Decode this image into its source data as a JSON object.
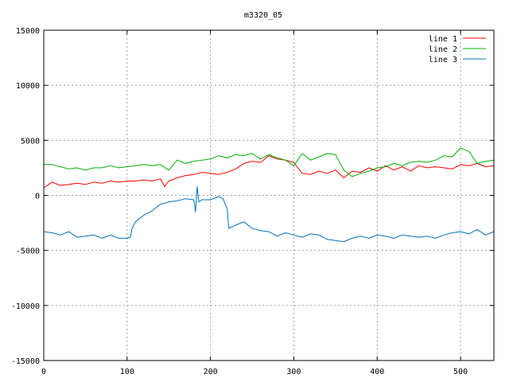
{
  "chart_data": {
    "type": "line",
    "title": "m3320_05",
    "xlabel": "",
    "ylabel": "",
    "xlim": [
      0,
      540
    ],
    "ylim": [
      -15000,
      15000
    ],
    "xticks": [
      0,
      100,
      200,
      300,
      400,
      500
    ],
    "yticks": [
      -15000,
      -10000,
      -5000,
      0,
      5000,
      10000,
      15000
    ],
    "grid": true,
    "legend_position": "top-right",
    "series": [
      {
        "name": "line 1",
        "color": "#ff0000",
        "x": [
          0,
          10,
          20,
          30,
          40,
          50,
          60,
          70,
          80,
          90,
          100,
          110,
          120,
          130,
          140,
          145,
          150,
          160,
          170,
          180,
          190,
          200,
          210,
          220,
          230,
          240,
          250,
          260,
          270,
          280,
          290,
          300,
          310,
          320,
          330,
          340,
          350,
          360,
          370,
          380,
          390,
          400,
          410,
          420,
          430,
          440,
          450,
          460,
          470,
          480,
          490,
          500,
          510,
          520,
          530,
          540
        ],
        "y": [
          700,
          1200,
          900,
          1000,
          1100,
          1000,
          1200,
          1100,
          1300,
          1200,
          1300,
          1300,
          1400,
          1300,
          1500,
          800,
          1300,
          1600,
          1800,
          1900,
          2100,
          2000,
          1900,
          2100,
          2400,
          2900,
          3100,
          3000,
          3600,
          3300,
          3200,
          3000,
          2000,
          1900,
          2200,
          2000,
          2300,
          1600,
          2200,
          2100,
          2500,
          2200,
          2700,
          2300,
          2600,
          2200,
          2700,
          2500,
          2600,
          2500,
          2400,
          2800,
          2700,
          2900,
          2600,
          2700
        ]
      },
      {
        "name": "line 2",
        "color": "#00b000",
        "x": [
          0,
          10,
          20,
          30,
          40,
          50,
          60,
          70,
          80,
          90,
          100,
          110,
          120,
          130,
          140,
          150,
          160,
          170,
          180,
          190,
          200,
          210,
          220,
          230,
          240,
          250,
          260,
          270,
          280,
          290,
          300,
          310,
          320,
          330,
          340,
          350,
          360,
          370,
          380,
          390,
          400,
          410,
          420,
          430,
          440,
          450,
          460,
          470,
          480,
          490,
          500,
          510,
          520,
          530,
          540
        ],
        "y": [
          2800,
          2800,
          2600,
          2400,
          2500,
          2300,
          2500,
          2500,
          2700,
          2500,
          2600,
          2700,
          2800,
          2700,
          2800,
          2300,
          3200,
          2900,
          3100,
          3200,
          3300,
          3600,
          3400,
          3700,
          3600,
          3800,
          3300,
          3700,
          3400,
          3200,
          2700,
          3800,
          3200,
          3500,
          3800,
          3700,
          2300,
          1700,
          2000,
          2200,
          2500,
          2600,
          2900,
          2700,
          3000,
          3100,
          3000,
          3200,
          3600,
          3500,
          4300,
          4000,
          2900,
          3100,
          3200
        ]
      },
      {
        "name": "line 3",
        "color": "#0070c0",
        "x": [
          0,
          10,
          20,
          30,
          40,
          50,
          60,
          70,
          80,
          90,
          100,
          104,
          106,
          110,
          120,
          130,
          140,
          150,
          160,
          170,
          180,
          182,
          184,
          186,
          190,
          200,
          210,
          215,
          220,
          222,
          230,
          240,
          250,
          260,
          270,
          280,
          290,
          300,
          310,
          320,
          330,
          340,
          350,
          360,
          370,
          380,
          390,
          400,
          410,
          420,
          430,
          440,
          450,
          460,
          470,
          480,
          490,
          500,
          510,
          520,
          530,
          540
        ],
        "y": [
          -3300,
          -3400,
          -3600,
          -3300,
          -3800,
          -3700,
          -3600,
          -3900,
          -3600,
          -3900,
          -3900,
          -3800,
          -3000,
          -2400,
          -1800,
          -1400,
          -800,
          -600,
          -500,
          -300,
          -400,
          -1500,
          800,
          -600,
          -400,
          -400,
          -100,
          -300,
          -1200,
          -3000,
          -2700,
          -2400,
          -3000,
          -3200,
          -3300,
          -3700,
          -3400,
          -3600,
          -3800,
          -3500,
          -3600,
          -4000,
          -4100,
          -4200,
          -3900,
          -3700,
          -3900,
          -3600,
          -3700,
          -3900,
          -3600,
          -3700,
          -3800,
          -3700,
          -3900,
          -3600,
          -3400,
          -3300,
          -3500,
          -3100,
          -3600,
          -3300
        ]
      }
    ]
  }
}
